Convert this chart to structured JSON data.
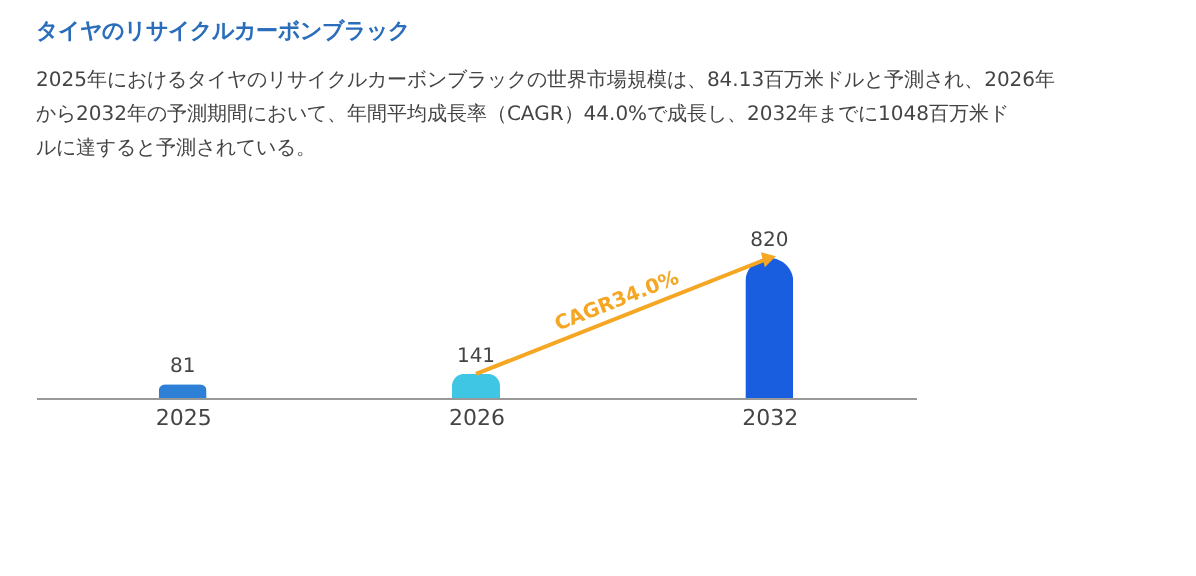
{
  "chart_data": {
    "type": "bar",
    "title": "タイヤのリサイクルカーボンブラック",
    "subtitle": "2025年におけるタイヤのリサイクルカーボンブラックの世界市場規模は、84.13百万米ドルと予測され、2026年から2032年の予測期間において、年間平均成長率（CAGR）44.0%で成長し、2032年までに1048百万米ドルに達すると予測されている。",
    "categories": [
      "2025",
      "2026",
      "2032"
    ],
    "values": [
      81,
      141,
      820
    ],
    "colors": [
      "#2e7fd6",
      "#3ec6e4",
      "#1a5ee0"
    ],
    "data_labels": true,
    "annotations": [
      "CAGR34.0%"
    ]
  }
}
